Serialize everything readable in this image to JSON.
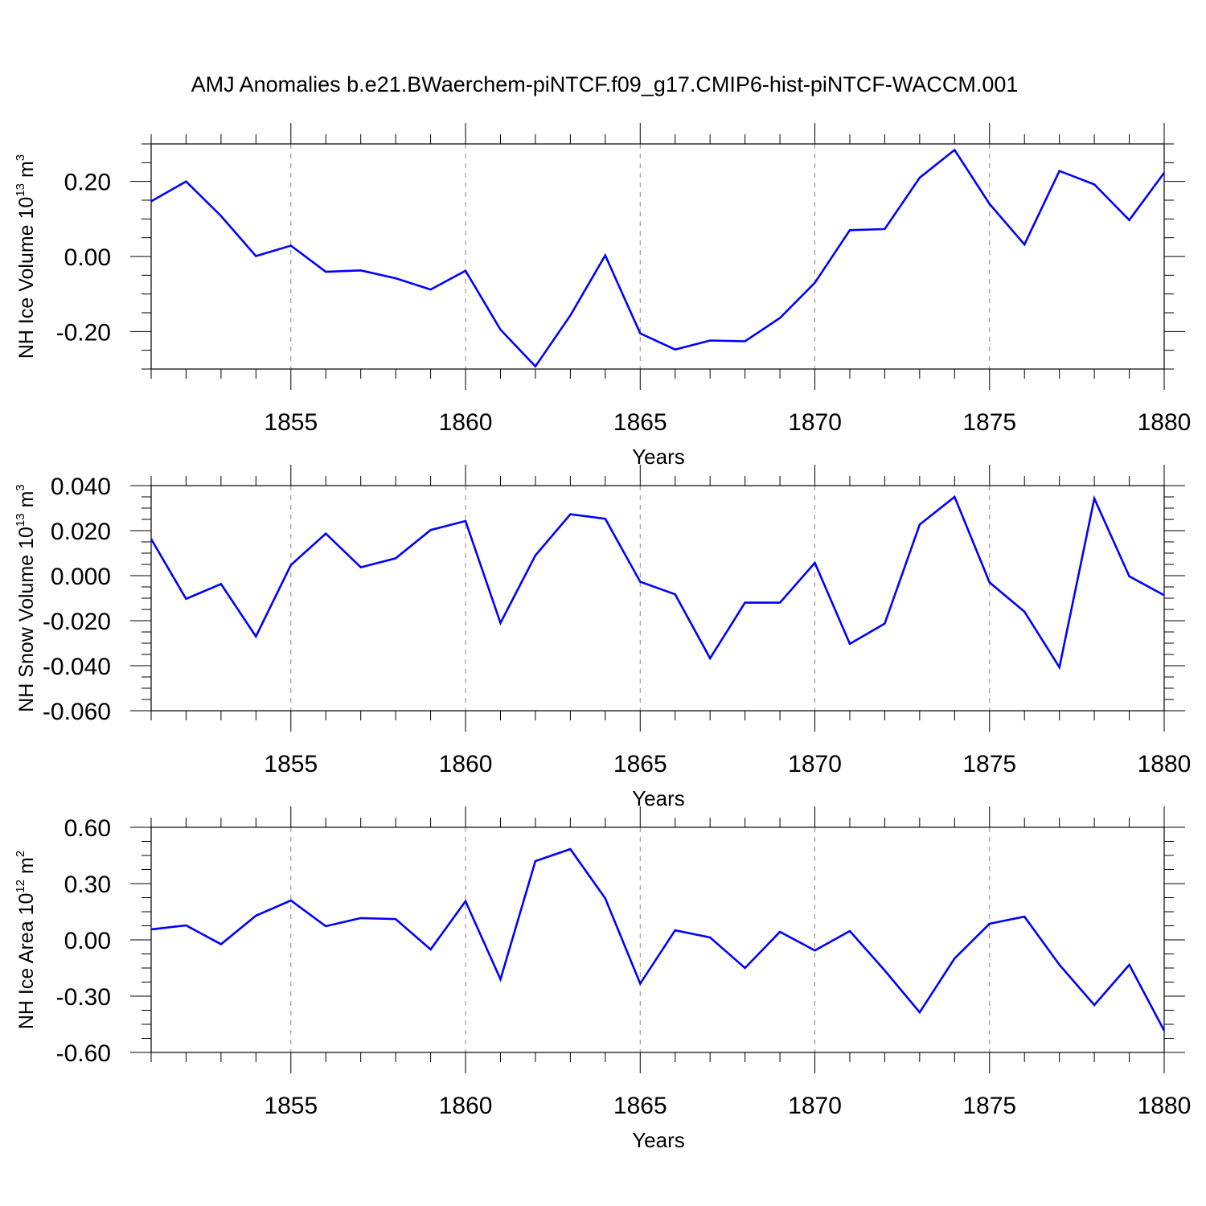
{
  "title": "AMJ Anomalies b.e21.BWaerchem-piNTCF.f09_g17.CMIP6-hist-piNTCF-WACCM.001",
  "line_color": "#0000ff",
  "chart_data": [
    {
      "type": "line",
      "ylabel": "NH Ice Volume 10",
      "ylabel_exp": "13",
      "ylabel_unit": " m",
      "ylabel_unit_exp": "3",
      "xlabel": "Years",
      "xlim": [
        1851,
        1880
      ],
      "ylim": [
        -0.3,
        0.3
      ],
      "xticks": [
        "1855",
        "1860",
        "1865",
        "1870",
        "1875",
        "1880"
      ],
      "yticks": [
        "0.20",
        "0.00",
        "-0.20"
      ],
      "ytick_values": [
        0.2,
        0.0,
        -0.2
      ],
      "grid": "dashed vertical at major x ticks",
      "x": [
        1851,
        1852,
        1853,
        1854,
        1855,
        1856,
        1857,
        1858,
        1859,
        1860,
        1861,
        1862,
        1863,
        1864,
        1865,
        1866,
        1867,
        1868,
        1869,
        1870,
        1871,
        1872,
        1873,
        1874,
        1875,
        1876,
        1877,
        1878,
        1879,
        1880
      ],
      "y": [
        0.147,
        0.2,
        0.108,
        0.001,
        0.029,
        -0.041,
        -0.037,
        -0.058,
        -0.088,
        -0.038,
        -0.195,
        -0.293,
        -0.157,
        0.003,
        -0.205,
        -0.248,
        -0.224,
        -0.226,
        -0.164,
        -0.07,
        0.07,
        0.073,
        0.21,
        0.284,
        0.14,
        0.032,
        0.228,
        0.192,
        0.097,
        0.223
      ]
    },
    {
      "type": "line",
      "ylabel": "NH Snow Volume 10",
      "ylabel_exp": "13",
      "ylabel_unit": " m",
      "ylabel_unit_exp": "3",
      "xlabel": "Years",
      "xlim": [
        1851,
        1880
      ],
      "ylim": [
        -0.06,
        0.04
      ],
      "xticks": [
        "1855",
        "1860",
        "1865",
        "1870",
        "1875",
        "1880"
      ],
      "yticks": [
        "0.040",
        "0.020",
        "0.000",
        "-0.020",
        "-0.040",
        "-0.060"
      ],
      "ytick_values": [
        0.04,
        0.02,
        0.0,
        -0.02,
        -0.04,
        -0.06
      ],
      "grid": "dashed vertical at major x ticks",
      "x": [
        1851,
        1852,
        1853,
        1854,
        1855,
        1856,
        1857,
        1858,
        1859,
        1860,
        1861,
        1862,
        1863,
        1864,
        1865,
        1866,
        1867,
        1868,
        1869,
        1870,
        1871,
        1872,
        1873,
        1874,
        1875,
        1876,
        1877,
        1878,
        1879,
        1880
      ],
      "y": [
        0.0163,
        -0.0103,
        -0.0037,
        -0.027,
        0.0047,
        0.0187,
        0.0037,
        0.0077,
        0.0203,
        0.0243,
        -0.021,
        0.009,
        0.0273,
        0.0253,
        -0.0027,
        -0.0083,
        -0.0367,
        -0.012,
        -0.012,
        0.0057,
        -0.0303,
        -0.0213,
        0.0227,
        0.035,
        -0.003,
        -0.016,
        -0.0407,
        0.0343,
        -0.0003,
        -0.0087
      ]
    },
    {
      "type": "line",
      "ylabel": "NH Ice Area 10",
      "ylabel_exp": "12",
      "ylabel_unit": " m",
      "ylabel_unit_exp": "2",
      "xlabel": "Years",
      "xlim": [
        1851,
        1880
      ],
      "ylim": [
        -0.6,
        0.6
      ],
      "xticks": [
        "1855",
        "1860",
        "1865",
        "1870",
        "1875",
        "1880"
      ],
      "yticks": [
        "0.60",
        "0.30",
        "0.00",
        "-0.30",
        "-0.60"
      ],
      "ytick_values": [
        0.6,
        0.3,
        0.0,
        -0.3,
        -0.6
      ],
      "grid": "dashed vertical at major x ticks",
      "x": [
        1851,
        1852,
        1853,
        1854,
        1855,
        1856,
        1857,
        1858,
        1859,
        1860,
        1861,
        1862,
        1863,
        1864,
        1865,
        1866,
        1867,
        1868,
        1869,
        1870,
        1871,
        1872,
        1873,
        1874,
        1875,
        1876,
        1877,
        1878,
        1879,
        1880
      ],
      "y": [
        0.056,
        0.077,
        -0.023,
        0.129,
        0.21,
        0.073,
        0.116,
        0.111,
        -0.051,
        0.206,
        -0.21,
        0.42,
        0.484,
        0.221,
        -0.233,
        0.051,
        0.013,
        -0.15,
        0.043,
        -0.056,
        0.047,
        -0.163,
        -0.386,
        -0.099,
        0.086,
        0.124,
        -0.133,
        -0.347,
        -0.133,
        -0.484
      ]
    }
  ]
}
